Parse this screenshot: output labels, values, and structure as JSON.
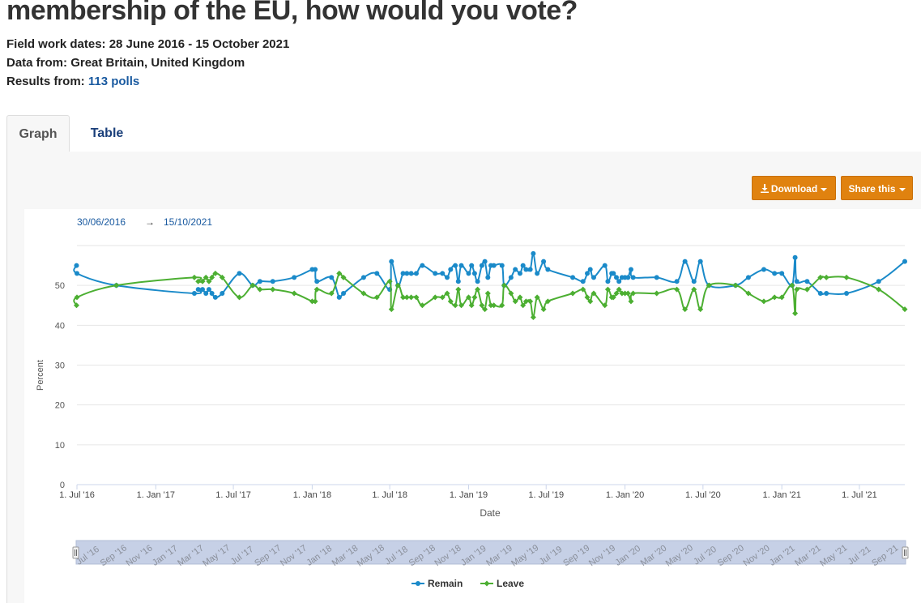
{
  "page": {
    "title": "membership of the EU, how would you vote?",
    "fieldwork_label": "Field work dates:",
    "fieldwork_value": "28 June 2016 - 15 October 2021",
    "data_from_label": "Data from:",
    "data_from_value": "Great Britain, United Kingdom",
    "results_label": "Results from:",
    "results_value": "113 polls"
  },
  "tabs": [
    "Graph",
    "Table"
  ],
  "buttons": {
    "download": "Download",
    "share": "Share this"
  },
  "colors": {
    "remain": "#1a8ac9",
    "leave": "#4caf32",
    "button": "#e0820f",
    "link": "#1a5aa0"
  },
  "chart_data": {
    "type": "line",
    "range_label_start": "30/06/2016",
    "range_arrow": "→",
    "range_label_end": "15/10/2021",
    "xlabel": "Date",
    "ylabel": "Percent",
    "ylim": [
      0,
      60
    ],
    "yticks": [
      0,
      10,
      20,
      30,
      40,
      50
    ],
    "xlim": [
      "2016-07-01",
      "2021-10-15"
    ],
    "xticks": [
      {
        "date": "2016-07-01",
        "label": "1. Jul '16"
      },
      {
        "date": "2017-01-01",
        "label": "1. Jan '17"
      },
      {
        "date": "2017-07-01",
        "label": "1. Jul '17"
      },
      {
        "date": "2018-01-01",
        "label": "1. Jan '18"
      },
      {
        "date": "2018-07-01",
        "label": "1. Jul '18"
      },
      {
        "date": "2019-01-01",
        "label": "1. Jan '19"
      },
      {
        "date": "2019-07-01",
        "label": "1. Jul '19"
      },
      {
        "date": "2020-01-01",
        "label": "1. Jan '20"
      },
      {
        "date": "2020-07-01",
        "label": "1. Jul '20"
      },
      {
        "date": "2021-01-01",
        "label": "1. Jan '21"
      },
      {
        "date": "2021-07-01",
        "label": "1. Jul '21"
      }
    ],
    "navigator_labels": [
      "Jul '16",
      "Sep '16",
      "Nov '16",
      "Jan '17",
      "Mar '17",
      "May '17",
      "Jul '17",
      "Sep '17",
      "Nov '17",
      "Jan '18",
      "Mar '18",
      "May '18",
      "Jul '18",
      "Sep '18",
      "Nov '18",
      "Jan '19",
      "Mar '19",
      "May '19",
      "Jul '19",
      "Sep '19",
      "Nov '19",
      "Jan '20",
      "Mar '20",
      "May '20",
      "Jul '20",
      "Sep '20",
      "Nov '20",
      "Jan '21",
      "Mar '21",
      "May '21",
      "Jul '21",
      "Sep '21"
    ],
    "legend_position": "bottom-center",
    "series": [
      {
        "name": "Remain",
        "points": [
          [
            "2016-06-30",
            55
          ],
          [
            "2016-07-01",
            53
          ],
          [
            "2016-10-01",
            50
          ],
          [
            "2017-04-01",
            48
          ],
          [
            "2017-04-10",
            49
          ],
          [
            "2017-04-20",
            49
          ],
          [
            "2017-04-28",
            48
          ],
          [
            "2017-05-05",
            49
          ],
          [
            "2017-05-12",
            48
          ],
          [
            "2017-05-20",
            47
          ],
          [
            "2017-06-05",
            48
          ],
          [
            "2017-07-15",
            53
          ],
          [
            "2017-08-15",
            50
          ],
          [
            "2017-09-01",
            51
          ],
          [
            "2017-10-01",
            51
          ],
          [
            "2017-11-20",
            52
          ],
          [
            "2018-01-01",
            54
          ],
          [
            "2018-01-08",
            54
          ],
          [
            "2018-01-12",
            51
          ],
          [
            "2018-02-15",
            52
          ],
          [
            "2018-03-05",
            47
          ],
          [
            "2018-03-15",
            48
          ],
          [
            "2018-05-01",
            52
          ],
          [
            "2018-06-01",
            53
          ],
          [
            "2018-07-01",
            49
          ],
          [
            "2018-07-05",
            56
          ],
          [
            "2018-07-20",
            50
          ],
          [
            "2018-08-01",
            53
          ],
          [
            "2018-08-10",
            53
          ],
          [
            "2018-08-20",
            53
          ],
          [
            "2018-09-01",
            53
          ],
          [
            "2018-09-15",
            55
          ],
          [
            "2018-10-15",
            53
          ],
          [
            "2018-11-01",
            53
          ],
          [
            "2018-11-12",
            52
          ],
          [
            "2018-11-20",
            54
          ],
          [
            "2018-12-01",
            55
          ],
          [
            "2018-12-08",
            51
          ],
          [
            "2018-12-15",
            55
          ],
          [
            "2019-01-01",
            53
          ],
          [
            "2019-01-08",
            55
          ],
          [
            "2019-01-15",
            53
          ],
          [
            "2019-01-22",
            51
          ],
          [
            "2019-02-01",
            55
          ],
          [
            "2019-02-08",
            56
          ],
          [
            "2019-02-15",
            52
          ],
          [
            "2019-02-22",
            55
          ],
          [
            "2019-03-01",
            55
          ],
          [
            "2019-03-20",
            55
          ],
          [
            "2019-03-25",
            50
          ],
          [
            "2019-04-10",
            52
          ],
          [
            "2019-04-20",
            54
          ],
          [
            "2019-05-01",
            53
          ],
          [
            "2019-05-08",
            55
          ],
          [
            "2019-05-15",
            54
          ],
          [
            "2019-05-25",
            54
          ],
          [
            "2019-06-01",
            58
          ],
          [
            "2019-06-10",
            53
          ],
          [
            "2019-06-25",
            56
          ],
          [
            "2019-07-05",
            54
          ],
          [
            "2019-09-01",
            52
          ],
          [
            "2019-09-25",
            51
          ],
          [
            "2019-10-05",
            53
          ],
          [
            "2019-10-12",
            54
          ],
          [
            "2019-10-20",
            52
          ],
          [
            "2019-11-15",
            55
          ],
          [
            "2019-11-22",
            51
          ],
          [
            "2019-12-01",
            53
          ],
          [
            "2019-12-05",
            53
          ],
          [
            "2019-12-12",
            52
          ],
          [
            "2019-12-18",
            51
          ],
          [
            "2019-12-25",
            52
          ],
          [
            "2020-01-01",
            52
          ],
          [
            "2020-01-08",
            52
          ],
          [
            "2020-01-15",
            54
          ],
          [
            "2020-01-20",
            52
          ],
          [
            "2020-03-15",
            52
          ],
          [
            "2020-05-01",
            51
          ],
          [
            "2020-05-20",
            56
          ],
          [
            "2020-06-10",
            51
          ],
          [
            "2020-06-25",
            56
          ],
          [
            "2020-07-15",
            50
          ],
          [
            "2020-09-15",
            50
          ],
          [
            "2020-10-15",
            52
          ],
          [
            "2020-11-20",
            54
          ],
          [
            "2020-12-15",
            53
          ],
          [
            "2021-01-01",
            53
          ],
          [
            "2021-01-25",
            50
          ],
          [
            "2021-02-01",
            57
          ],
          [
            "2021-02-05",
            51
          ],
          [
            "2021-03-01",
            51
          ],
          [
            "2021-04-01",
            48
          ],
          [
            "2021-04-15",
            48
          ],
          [
            "2021-06-01",
            48
          ],
          [
            "2021-08-15",
            51
          ],
          [
            "2021-10-15",
            56
          ]
        ]
      },
      {
        "name": "Leave",
        "points": [
          [
            "2016-06-30",
            45
          ],
          [
            "2016-07-01",
            47
          ],
          [
            "2016-10-01",
            50
          ],
          [
            "2017-04-01",
            52
          ],
          [
            "2017-04-10",
            51
          ],
          [
            "2017-04-20",
            51
          ],
          [
            "2017-04-28",
            52
          ],
          [
            "2017-05-05",
            51
          ],
          [
            "2017-05-12",
            52
          ],
          [
            "2017-05-20",
            53
          ],
          [
            "2017-06-05",
            52
          ],
          [
            "2017-07-15",
            47
          ],
          [
            "2017-08-15",
            50
          ],
          [
            "2017-09-01",
            49
          ],
          [
            "2017-10-01",
            49
          ],
          [
            "2017-11-20",
            48
          ],
          [
            "2018-01-01",
            46
          ],
          [
            "2018-01-08",
            46
          ],
          [
            "2018-01-12",
            49
          ],
          [
            "2018-02-15",
            48
          ],
          [
            "2018-03-05",
            53
          ],
          [
            "2018-03-15",
            52
          ],
          [
            "2018-05-01",
            48
          ],
          [
            "2018-06-01",
            47
          ],
          [
            "2018-07-01",
            51
          ],
          [
            "2018-07-05",
            44
          ],
          [
            "2018-07-20",
            50
          ],
          [
            "2018-08-01",
            47
          ],
          [
            "2018-08-10",
            47
          ],
          [
            "2018-08-20",
            47
          ],
          [
            "2018-09-01",
            47
          ],
          [
            "2018-09-15",
            45
          ],
          [
            "2018-10-15",
            47
          ],
          [
            "2018-11-01",
            47
          ],
          [
            "2018-11-12",
            48
          ],
          [
            "2018-11-20",
            46
          ],
          [
            "2018-12-01",
            45
          ],
          [
            "2018-12-08",
            49
          ],
          [
            "2018-12-15",
            45
          ],
          [
            "2019-01-01",
            47
          ],
          [
            "2019-01-08",
            45
          ],
          [
            "2019-01-15",
            47
          ],
          [
            "2019-01-22",
            49
          ],
          [
            "2019-02-01",
            45
          ],
          [
            "2019-02-08",
            44
          ],
          [
            "2019-02-15",
            48
          ],
          [
            "2019-02-22",
            45
          ],
          [
            "2019-03-01",
            45
          ],
          [
            "2019-03-20",
            45
          ],
          [
            "2019-03-25",
            50
          ],
          [
            "2019-04-10",
            48
          ],
          [
            "2019-04-20",
            46
          ],
          [
            "2019-05-01",
            47
          ],
          [
            "2019-05-08",
            45
          ],
          [
            "2019-05-15",
            46
          ],
          [
            "2019-05-25",
            46
          ],
          [
            "2019-06-01",
            42
          ],
          [
            "2019-06-10",
            47
          ],
          [
            "2019-06-25",
            44
          ],
          [
            "2019-07-05",
            46
          ],
          [
            "2019-09-01",
            48
          ],
          [
            "2019-09-25",
            49
          ],
          [
            "2019-10-05",
            47
          ],
          [
            "2019-10-12",
            46
          ],
          [
            "2019-10-20",
            48
          ],
          [
            "2019-11-15",
            45
          ],
          [
            "2019-11-22",
            49
          ],
          [
            "2019-12-01",
            47
          ],
          [
            "2019-12-05",
            47
          ],
          [
            "2019-12-12",
            48
          ],
          [
            "2019-12-18",
            49
          ],
          [
            "2019-12-25",
            48
          ],
          [
            "2020-01-01",
            48
          ],
          [
            "2020-01-08",
            48
          ],
          [
            "2020-01-15",
            46
          ],
          [
            "2020-01-20",
            48
          ],
          [
            "2020-03-15",
            48
          ],
          [
            "2020-05-01",
            49
          ],
          [
            "2020-05-20",
            44
          ],
          [
            "2020-06-10",
            49
          ],
          [
            "2020-06-25",
            44
          ],
          [
            "2020-07-15",
            50
          ],
          [
            "2020-09-15",
            50
          ],
          [
            "2020-10-15",
            48
          ],
          [
            "2020-11-20",
            46
          ],
          [
            "2020-12-15",
            47
          ],
          [
            "2021-01-01",
            47
          ],
          [
            "2021-01-25",
            50
          ],
          [
            "2021-02-01",
            43
          ],
          [
            "2021-02-05",
            49
          ],
          [
            "2021-03-01",
            49
          ],
          [
            "2021-04-01",
            52
          ],
          [
            "2021-04-15",
            52
          ],
          [
            "2021-06-01",
            52
          ],
          [
            "2021-08-15",
            49
          ],
          [
            "2021-10-15",
            44
          ]
        ]
      }
    ]
  }
}
